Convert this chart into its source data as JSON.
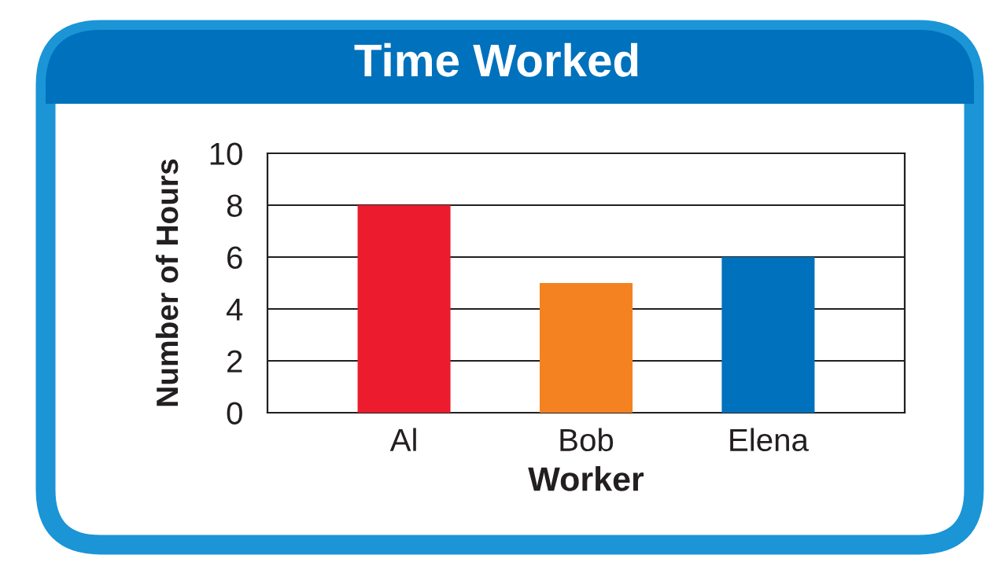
{
  "chart_data": {
    "type": "bar",
    "title": "Time Worked",
    "xlabel": "Worker",
    "ylabel": "Number of Hours",
    "categories": [
      "Al",
      "Bob",
      "Elena"
    ],
    "values": [
      8,
      5,
      6
    ],
    "colors": [
      "#ec1b2e",
      "#f58220",
      "#0071bc"
    ],
    "ylim": [
      0,
      10
    ],
    "yticks": [
      0,
      2,
      4,
      6,
      8,
      10
    ],
    "grid": "y"
  }
}
